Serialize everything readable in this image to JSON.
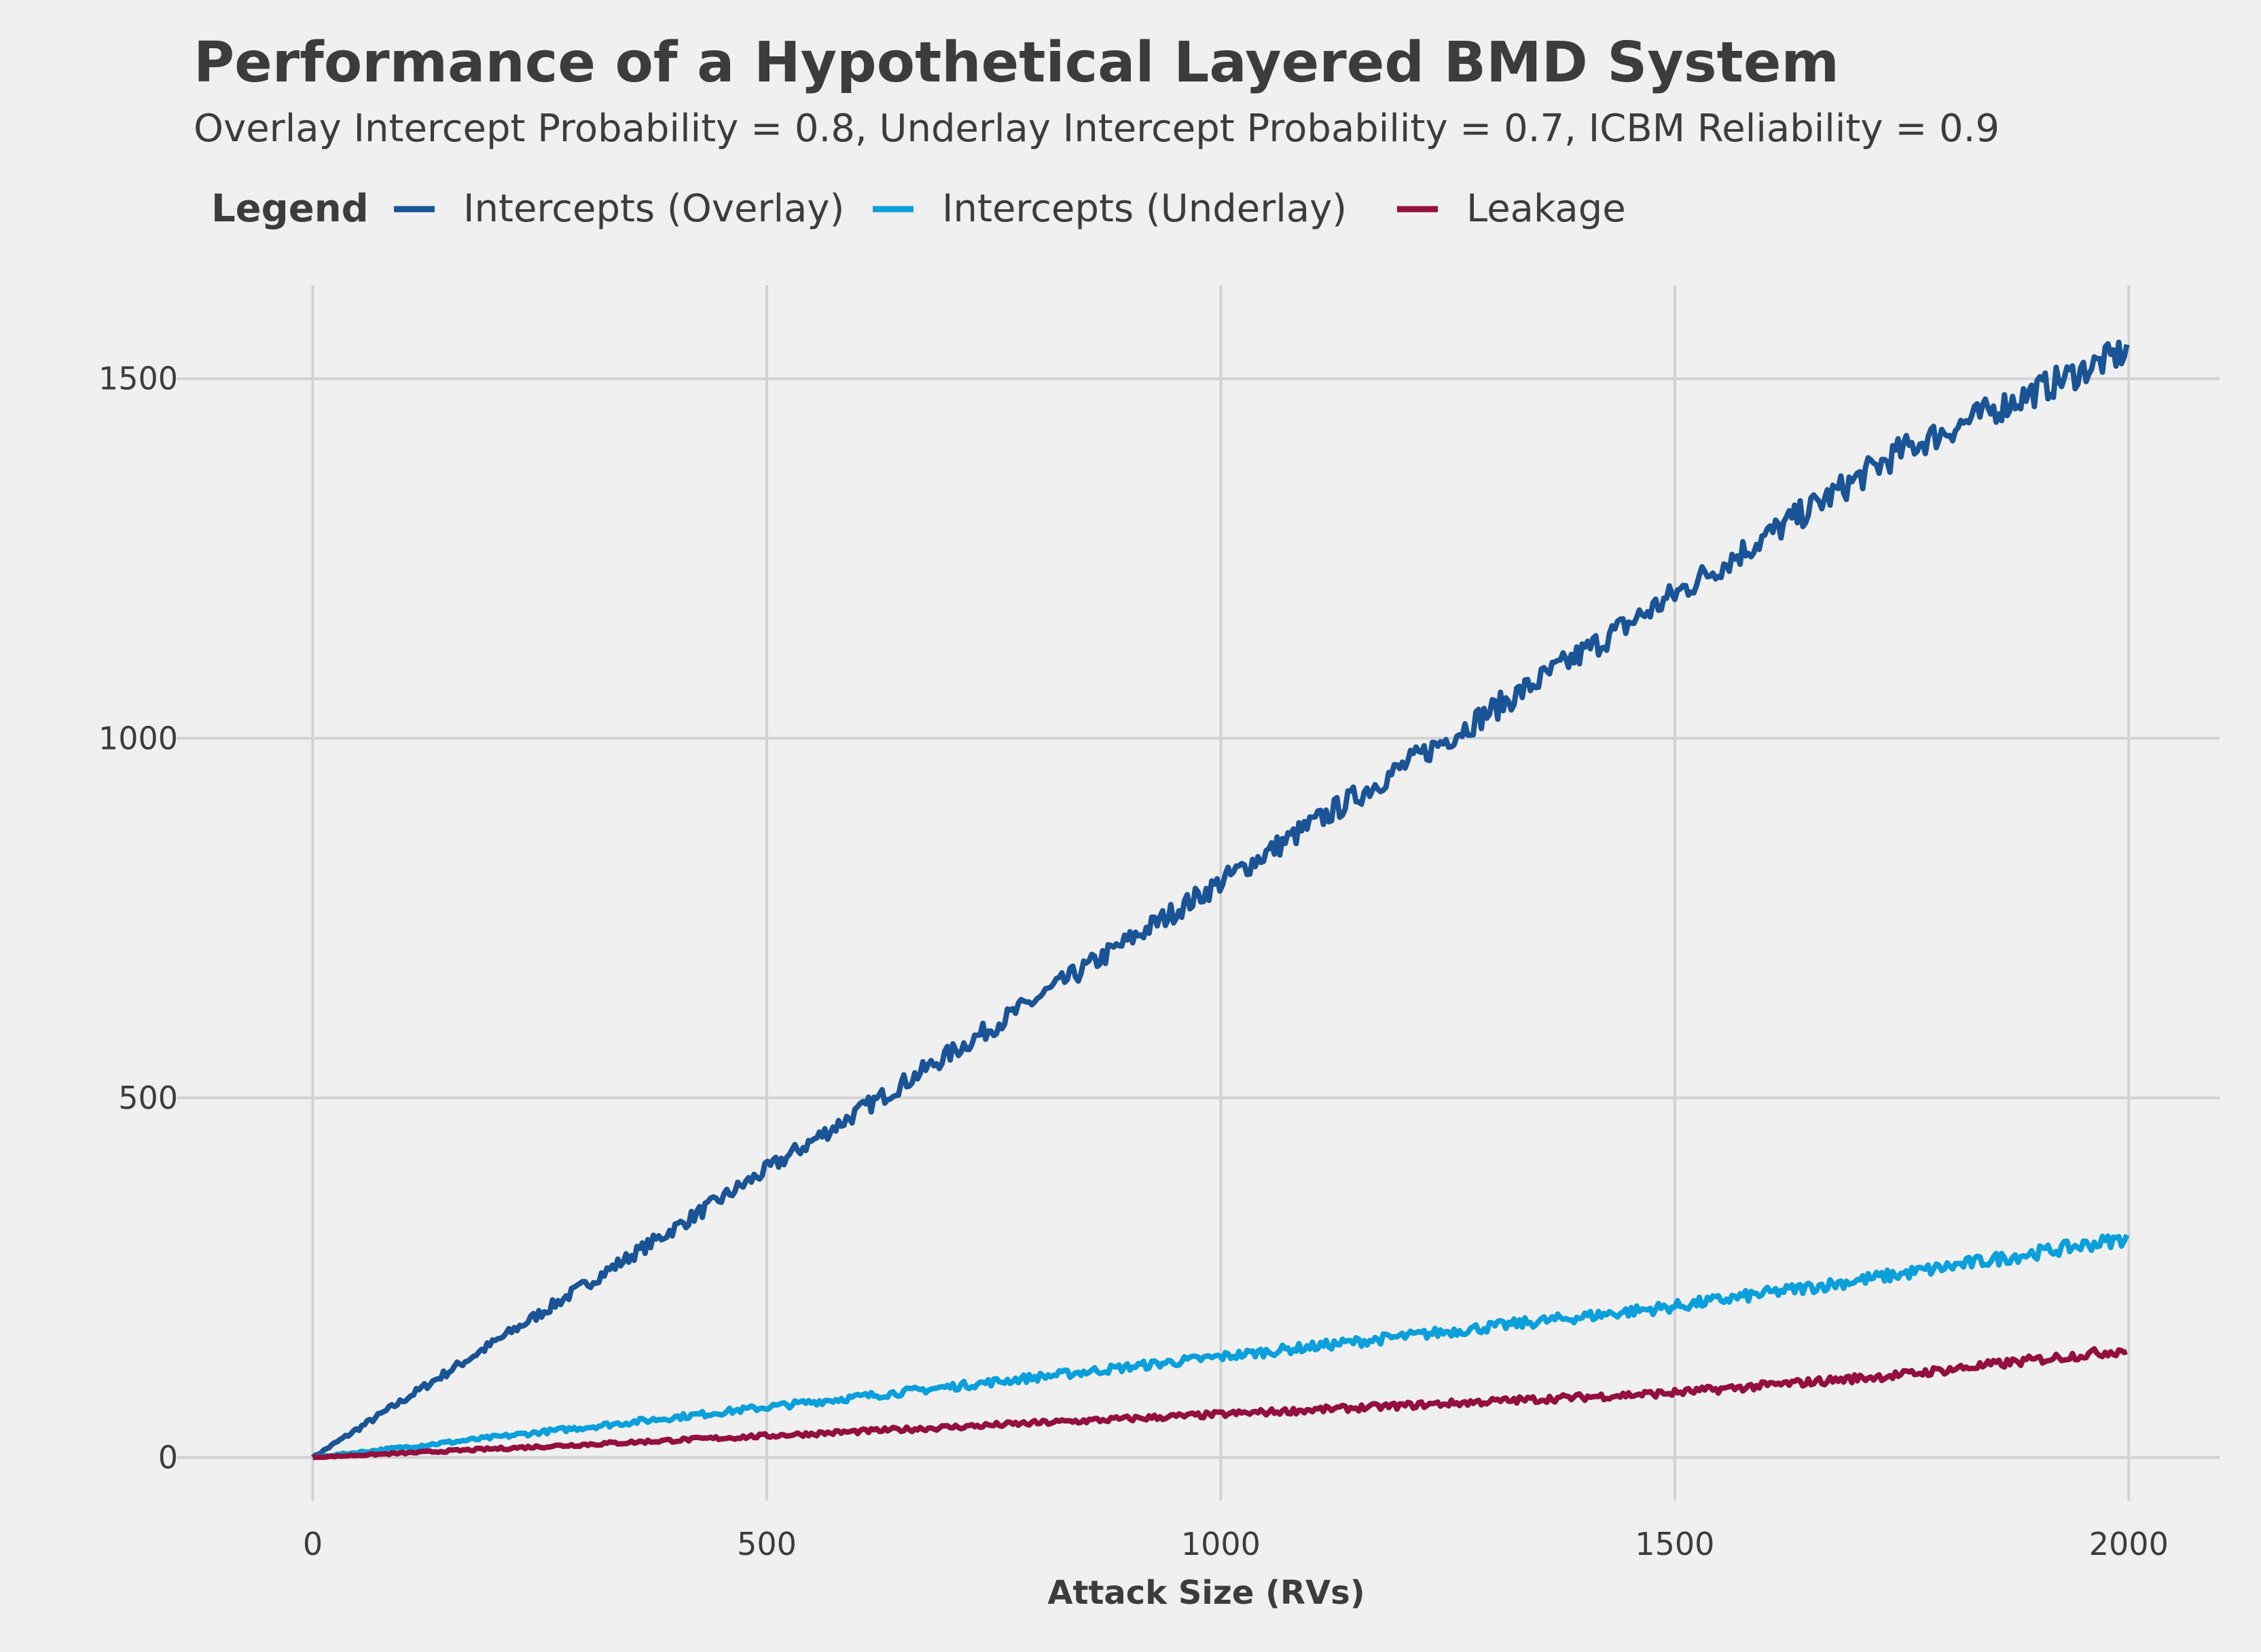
{
  "chart_data": {
    "type": "line",
    "title": "Performance of a Hypothetical Layered BMD System",
    "subtitle": "Overlay Intercept Probability = 0.8, Underlay Intercept Probability = 0.7, ICBM Reliability = 0.9",
    "legend": {
      "title": "Legend",
      "placement": "top-left"
    },
    "xlabel": "Attack Size (RVs)",
    "ylabel": "",
    "xlim": [
      -150,
      2100
    ],
    "ylim": [
      -60,
      1630
    ],
    "xticks": [
      0,
      500,
      1000,
      1500,
      2000
    ],
    "yticks": [
      0,
      500,
      1000,
      1500
    ],
    "grid": true,
    "series": [
      {
        "name": "Intercepts (Overlay)",
        "color": "#1a5496",
        "x": [
          0,
          250,
          500,
          750,
          1000,
          1250,
          1500,
          1750,
          2000
        ],
        "y": [
          0,
          200,
          400,
          600,
          800,
          1000,
          1200,
          1400,
          1540
        ]
      },
      {
        "name": "Intercepts (Underlay)",
        "color": "#0b9fdb",
        "x": [
          0,
          250,
          500,
          750,
          1000,
          1250,
          1500,
          1750,
          2000
        ],
        "y": [
          0,
          35,
          70,
          105,
          140,
          175,
          210,
          255,
          305
        ]
      },
      {
        "name": "Leakage",
        "color": "#930f3e",
        "x": [
          0,
          250,
          500,
          750,
          1000,
          1250,
          1500,
          1750,
          2000
        ],
        "y": [
          0,
          15,
          30,
          45,
          60,
          75,
          90,
          115,
          150
        ]
      }
    ]
  }
}
